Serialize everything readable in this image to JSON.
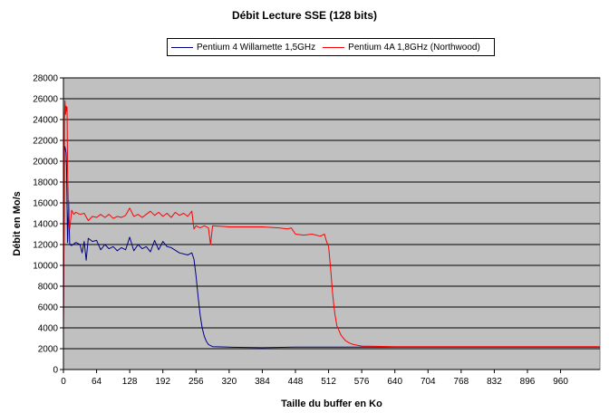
{
  "chart_data": {
    "type": "line",
    "title": "Débit Lecture SSE (128 bits)",
    "xlabel": "Taille du buffer en Ko",
    "ylabel": "Débit en Mo/s",
    "xlim": [
      0,
      1036
    ],
    "ylim": [
      0,
      28000
    ],
    "xticks": [
      0,
      64,
      128,
      192,
      256,
      320,
      384,
      448,
      512,
      576,
      640,
      704,
      768,
      832,
      896,
      960
    ],
    "yticks": [
      0,
      2000,
      4000,
      6000,
      8000,
      10000,
      12000,
      14000,
      16000,
      18000,
      20000,
      22000,
      24000,
      26000,
      28000
    ],
    "grid": "horizontal",
    "legend_position": "top",
    "plot_background": "#c0c0c0",
    "series": [
      {
        "name": "Pentium 4 Willamette 1,5GHz",
        "color": "#000080",
        "points": [
          [
            0,
            4000
          ],
          [
            1,
            12000
          ],
          [
            2,
            21000
          ],
          [
            3,
            21400
          ],
          [
            4,
            21100
          ],
          [
            5,
            20800
          ],
          [
            6,
            19500
          ],
          [
            8,
            12200
          ],
          [
            10,
            16200
          ],
          [
            12,
            12000
          ],
          [
            16,
            11900
          ],
          [
            24,
            12200
          ],
          [
            32,
            12000
          ],
          [
            36,
            11200
          ],
          [
            40,
            12300
          ],
          [
            44,
            10500
          ],
          [
            48,
            12600
          ],
          [
            56,
            12300
          ],
          [
            64,
            12400
          ],
          [
            72,
            11500
          ],
          [
            80,
            12000
          ],
          [
            88,
            11600
          ],
          [
            96,
            11800
          ],
          [
            104,
            11400
          ],
          [
            112,
            11700
          ],
          [
            120,
            11500
          ],
          [
            128,
            12700
          ],
          [
            136,
            11400
          ],
          [
            144,
            12000
          ],
          [
            152,
            11600
          ],
          [
            160,
            11800
          ],
          [
            168,
            11300
          ],
          [
            176,
            12400
          ],
          [
            184,
            11500
          ],
          [
            192,
            12300
          ],
          [
            200,
            11800
          ],
          [
            208,
            11700
          ],
          [
            224,
            11200
          ],
          [
            240,
            11000
          ],
          [
            248,
            11200
          ],
          [
            252,
            10600
          ],
          [
            256,
            9000
          ],
          [
            260,
            7000
          ],
          [
            264,
            5200
          ],
          [
            268,
            4000
          ],
          [
            272,
            3200
          ],
          [
            276,
            2700
          ],
          [
            280,
            2400
          ],
          [
            288,
            2200
          ],
          [
            320,
            2150
          ],
          [
            384,
            2100
          ],
          [
            448,
            2150
          ],
          [
            512,
            2150
          ],
          [
            576,
            2150
          ],
          [
            640,
            2150
          ],
          [
            704,
            2150
          ],
          [
            768,
            2150
          ],
          [
            832,
            2150
          ],
          [
            896,
            2150
          ],
          [
            960,
            2150
          ],
          [
            1036,
            2150
          ]
        ]
      },
      {
        "name": "Pentium 4A 1,8GHz (Northwood)",
        "color": "#ff0000",
        "points": [
          [
            0,
            3500
          ],
          [
            1,
            14000
          ],
          [
            2,
            24000
          ],
          [
            3,
            25800
          ],
          [
            4,
            24500
          ],
          [
            5,
            25300
          ],
          [
            6,
            24800
          ],
          [
            7,
            25200
          ],
          [
            8,
            19000
          ],
          [
            10,
            14800
          ],
          [
            12,
            13500
          ],
          [
            16,
            15300
          ],
          [
            20,
            14900
          ],
          [
            24,
            15100
          ],
          [
            32,
            14900
          ],
          [
            40,
            15000
          ],
          [
            48,
            14300
          ],
          [
            56,
            14700
          ],
          [
            64,
            14600
          ],
          [
            72,
            14900
          ],
          [
            80,
            14600
          ],
          [
            88,
            14900
          ],
          [
            96,
            14500
          ],
          [
            104,
            14700
          ],
          [
            112,
            14600
          ],
          [
            120,
            14800
          ],
          [
            128,
            15500
          ],
          [
            136,
            14700
          ],
          [
            144,
            14900
          ],
          [
            152,
            14600
          ],
          [
            160,
            14900
          ],
          [
            168,
            15200
          ],
          [
            176,
            14800
          ],
          [
            184,
            15100
          ],
          [
            192,
            14700
          ],
          [
            200,
            15000
          ],
          [
            208,
            14600
          ],
          [
            216,
            15100
          ],
          [
            224,
            14800
          ],
          [
            232,
            15000
          ],
          [
            240,
            14700
          ],
          [
            248,
            15200
          ],
          [
            252,
            13500
          ],
          [
            256,
            13800
          ],
          [
            264,
            13600
          ],
          [
            272,
            13800
          ],
          [
            280,
            13600
          ],
          [
            284,
            12000
          ],
          [
            288,
            13800
          ],
          [
            320,
            13700
          ],
          [
            352,
            13700
          ],
          [
            384,
            13700
          ],
          [
            416,
            13600
          ],
          [
            432,
            13500
          ],
          [
            440,
            13600
          ],
          [
            448,
            13000
          ],
          [
            464,
            12900
          ],
          [
            480,
            13000
          ],
          [
            496,
            12800
          ],
          [
            504,
            13000
          ],
          [
            508,
            12300
          ],
          [
            512,
            11800
          ],
          [
            516,
            9600
          ],
          [
            520,
            7200
          ],
          [
            524,
            5400
          ],
          [
            528,
            4200
          ],
          [
            536,
            3300
          ],
          [
            544,
            2800
          ],
          [
            552,
            2550
          ],
          [
            560,
            2400
          ],
          [
            576,
            2250
          ],
          [
            640,
            2200
          ],
          [
            704,
            2200
          ],
          [
            768,
            2200
          ],
          [
            832,
            2200
          ],
          [
            896,
            2200
          ],
          [
            960,
            2200
          ],
          [
            1036,
            2200
          ]
        ]
      }
    ]
  }
}
